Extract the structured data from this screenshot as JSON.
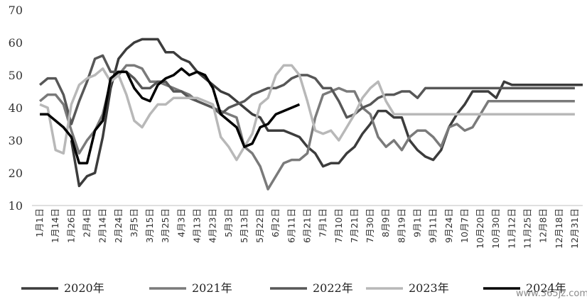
{
  "chart_data": {
    "type": "line",
    "title": "",
    "xlabel": "",
    "ylabel": "",
    "ylim": [
      10,
      70
    ],
    "yticks": [
      10,
      20,
      30,
      40,
      50,
      60,
      70
    ],
    "grid": false,
    "legend_position": "bottom",
    "categories": [
      "1月1日",
      "1月14日",
      "1月26日",
      "2月4日",
      "2月14日",
      "2月24日",
      "3月5日",
      "3月15日",
      "3月25日",
      "4月3日",
      "4月13日",
      "4月23日",
      "5月3日",
      "5月13日",
      "5月22日",
      "6月2日",
      "6月11日",
      "6月21日",
      "7月1日",
      "7月10日",
      "7月21日",
      "7月30日",
      "8月9日",
      "8月19日",
      "9月1日",
      "9月11日",
      "9月24日",
      "10月7日",
      "10月20日",
      "10月30日",
      "11月12日",
      "11月25日",
      "12月8日",
      "12月18日",
      "12月31日"
    ],
    "series": [
      {
        "name": "2020年",
        "color": "#3c3c3c",
        "width": 3.5,
        "x": [
          3.0,
          3.5,
          4.0,
          4.5,
          5.0,
          5.5,
          6.0,
          6.5,
          7.0,
          7.5,
          8.0,
          8.5,
          9.0,
          9.5,
          10.0,
          10.5,
          11.0,
          11.5,
          12.0,
          12.5,
          13.0,
          13.5,
          14.0,
          14.5,
          15.0,
          15.5,
          16.0,
          16.5,
          17.0,
          17.5,
          18.0,
          18.5,
          19.0,
          19.5,
          20.0,
          20.5,
          21.0,
          21.5,
          22.0,
          22.5,
          23.0,
          23.5,
          24.0,
          24.5,
          25.0,
          25.5,
          26.0,
          26.5,
          27.0,
          27.5,
          28.0,
          28.5,
          29.0,
          29.5,
          30.0,
          30.5,
          31.0,
          31.5,
          32.0,
          32.5,
          33.0,
          33.5,
          34.0,
          34.5,
          35.0,
          35.5
        ],
        "y": [
          30,
          16,
          19,
          20,
          31,
          46,
          55,
          58,
          60,
          61,
          61,
          61,
          57,
          57,
          55,
          54,
          51,
          49,
          47,
          45,
          44,
          42,
          40,
          38,
          37,
          33,
          33,
          33,
          32,
          31,
          28,
          26,
          22,
          23,
          23,
          26,
          28,
          32,
          35,
          39,
          39,
          37,
          37,
          30,
          27,
          25,
          24,
          27,
          34,
          38,
          41,
          45,
          45,
          45,
          43,
          48,
          47,
          47,
          47,
          47,
          47,
          47,
          47,
          47,
          47,
          47
        ]
      },
      {
        "name": "2021年",
        "color": "#7a7a7a",
        "width": 3.5,
        "x": [
          1.0,
          1.5,
          2.0,
          2.5,
          3.0,
          3.5,
          4.0,
          4.5,
          5.0,
          5.5,
          6.0,
          6.5,
          7.0,
          7.5,
          8.0,
          8.5,
          9.0,
          9.5,
          10.0,
          10.5,
          11.0,
          11.5,
          12.0,
          12.5,
          13.0,
          13.5,
          14.0,
          14.5,
          15.0,
          15.5,
          16.0,
          16.5,
          17.0,
          17.5,
          18.0,
          18.5,
          19.0,
          19.5,
          20.0,
          20.5,
          21.0,
          21.5,
          22.0,
          22.5,
          23.0,
          23.5,
          24.0,
          24.5,
          25.0,
          25.5,
          26.0,
          26.5,
          27.0,
          27.5,
          28.0,
          28.5,
          29.0,
          29.5,
          30.0,
          30.5,
          31.0,
          31.5,
          32.0,
          32.5,
          33.0,
          33.5,
          34.0,
          34.5,
          35.0
        ],
        "y": [
          42,
          44,
          44,
          41,
          33,
          26,
          30,
          33,
          38,
          48,
          50,
          53,
          53,
          52,
          48,
          48,
          47,
          46,
          45,
          44,
          42,
          41,
          40,
          39,
          38,
          37,
          28,
          26,
          22,
          15,
          19,
          23,
          24,
          24,
          26,
          37,
          44,
          45,
          46,
          45,
          45,
          40,
          38,
          31,
          28,
          30,
          27,
          31,
          33,
          33,
          31,
          28,
          34,
          35,
          33,
          34,
          38,
          42,
          42,
          42,
          42,
          42,
          42,
          42,
          42,
          42,
          42,
          42,
          42
        ]
      },
      {
        "name": "2022年",
        "color": "#575757",
        "width": 3.5,
        "x": [
          1.0,
          1.5,
          2.0,
          2.5,
          3.0,
          3.5,
          4.0,
          4.5,
          5.0,
          5.5,
          6.0,
          6.5,
          7.0,
          7.5,
          8.0,
          8.5,
          9.0,
          9.5,
          10.0,
          10.5,
          11.0,
          11.5,
          12.0,
          12.5,
          13.0,
          13.5,
          14.0,
          14.5,
          15.0,
          15.5,
          16.0,
          16.5,
          17.0,
          17.5,
          18.0,
          18.5,
          19.0,
          19.5,
          20.0,
          20.5,
          21.0,
          21.5,
          22.0,
          22.5,
          23.0,
          23.5,
          24.0,
          24.5,
          25.0,
          25.5,
          26.0,
          26.5,
          27.0,
          27.5,
          28.0,
          28.5,
          29.0,
          29.5,
          30.0,
          30.5,
          31.0,
          31.5,
          32.0,
          32.5,
          33.0,
          33.5,
          34.0,
          34.5,
          35.0
        ],
        "y": [
          47,
          49,
          49,
          44,
          35,
          42,
          48,
          55,
          56,
          51,
          51,
          51,
          49,
          46,
          46,
          48,
          48,
          45,
          45,
          43,
          42,
          41,
          40,
          38,
          40,
          41,
          42,
          44,
          45,
          46,
          46,
          47,
          49,
          50,
          50,
          49,
          46,
          46,
          42,
          37,
          38,
          40,
          41,
          43,
          44,
          44,
          45,
          45,
          43,
          46,
          46,
          46,
          46,
          46,
          46,
          46,
          46,
          46,
          46,
          46,
          46,
          46,
          46,
          46,
          46,
          46,
          46,
          46,
          46
        ]
      },
      {
        "name": "2023年",
        "color": "#b8b8b8",
        "width": 3.5,
        "x": [
          1.0,
          1.5,
          2.0,
          2.5,
          3.0,
          3.5,
          4.0,
          4.5,
          5.0,
          5.5,
          6.0,
          6.5,
          7.0,
          7.5,
          8.0,
          8.5,
          9.0,
          9.5,
          10.0,
          10.5,
          11.0,
          11.5,
          12.0,
          12.5,
          13.0,
          13.5,
          14.0,
          14.5,
          15.0,
          15.5,
          16.0,
          16.5,
          17.0,
          17.5,
          18.0,
          18.5,
          19.0,
          19.5,
          20.0,
          20.5,
          21.0,
          21.5,
          22.0,
          22.5,
          23.0,
          23.5,
          24.0,
          24.5,
          25.0,
          25.5,
          26.0,
          26.5,
          27.0,
          27.5,
          28.0,
          28.5,
          29.0,
          29.5,
          30.0,
          30.5,
          31.0,
          31.5,
          32.0,
          32.5,
          33.0,
          33.5,
          34.0,
          34.5,
          35.0
        ],
        "y": [
          41,
          40,
          27,
          26,
          41,
          47,
          49,
          50,
          52,
          48,
          50,
          44,
          36,
          34,
          38,
          41,
          41,
          43,
          43,
          43,
          43,
          42,
          41,
          31,
          28,
          24,
          28,
          32,
          41,
          43,
          50,
          53,
          53,
          50,
          42,
          33,
          32,
          33,
          30,
          34,
          38,
          43,
          46,
          48,
          42,
          38,
          38,
          38,
          38,
          38,
          38,
          38,
          38,
          38,
          38,
          38,
          38,
          38,
          38,
          38,
          38,
          38,
          38,
          38,
          38,
          38,
          38,
          38,
          38
        ]
      },
      {
        "name": "2024年",
        "color": "#000000",
        "width": 3.5,
        "x": [
          1.0,
          1.5,
          2.0,
          2.5,
          3.0,
          3.5,
          4.0,
          4.5,
          5.0,
          5.5,
          6.0,
          6.5,
          7.0,
          7.5,
          8.0,
          8.5,
          9.0,
          9.5,
          10.0,
          10.5,
          11.0,
          11.5,
          12.0,
          12.5,
          13.0,
          13.5,
          14.0,
          14.5,
          15.0,
          15.5,
          16.0,
          16.5,
          17.0,
          17.5
        ],
        "y": [
          38,
          38,
          36,
          34,
          31,
          23,
          23,
          33,
          36,
          49,
          51,
          51,
          46,
          43,
          42,
          47,
          49,
          50,
          52,
          50,
          51,
          50,
          46,
          38,
          36,
          34,
          28,
          29,
          34,
          35,
          38,
          39,
          40,
          41
        ]
      }
    ]
  },
  "legend": [
    {
      "label": "2020年",
      "color": "#3c3c3c"
    },
    {
      "label": "2021年",
      "color": "#7a7a7a"
    },
    {
      "label": "2022年",
      "color": "#575757"
    },
    {
      "label": "2023年",
      "color": "#b8b8b8"
    },
    {
      "label": "2024年",
      "color": "#000000"
    }
  ],
  "watermark": "www.365jz.com"
}
